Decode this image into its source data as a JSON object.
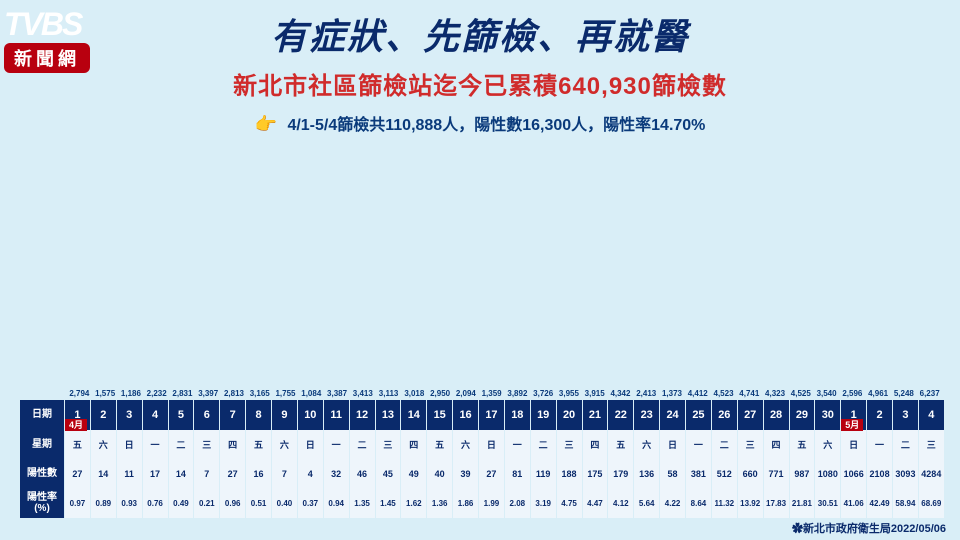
{
  "logo": {
    "line1": "TVBS",
    "line2": "新聞網"
  },
  "title": "有症狀、先篩檢、再就醫",
  "subtitle": "新北市社區篩檢站迄今已累積640,930篩檢數",
  "stats_line": "4/1-5/4篩檢共110,888人，陽性數16,300人，陽性率14.70%",
  "footer": "新北市政府衛生局2022/05/06",
  "row_headers": {
    "date": "日期",
    "weekday": "星期",
    "positive": "陽性數",
    "rate": "陽性率\n(%)"
  },
  "month_labels": {
    "april": "4月",
    "may": "5月"
  },
  "chart": {
    "bar_color": "#4a8fc9",
    "max_value": 6237,
    "header_bg": "#0a2a6b",
    "cell_bg": "#eef5fb",
    "data": [
      {
        "date": "1",
        "month": "4月",
        "wd": "五",
        "tests": 2794,
        "pos": 27,
        "rate": "0.97"
      },
      {
        "date": "2",
        "wd": "六",
        "tests": 1575,
        "pos": 14,
        "rate": "0.89"
      },
      {
        "date": "3",
        "wd": "日",
        "tests": 1186,
        "pos": 11,
        "rate": "0.93"
      },
      {
        "date": "4",
        "wd": "一",
        "tests": 2232,
        "pos": 17,
        "rate": "0.76"
      },
      {
        "date": "5",
        "wd": "二",
        "tests": 2831,
        "pos": 14,
        "rate": "0.49"
      },
      {
        "date": "6",
        "wd": "三",
        "tests": 3397,
        "pos": 7,
        "rate": "0.21"
      },
      {
        "date": "7",
        "wd": "四",
        "tests": 2813,
        "pos": 27,
        "rate": "0.96"
      },
      {
        "date": "8",
        "wd": "五",
        "tests": 3165,
        "pos": 16,
        "rate": "0.51"
      },
      {
        "date": "9",
        "wd": "六",
        "tests": 1755,
        "pos": 7,
        "rate": "0.40"
      },
      {
        "date": "10",
        "wd": "日",
        "tests": 1084,
        "pos": 4,
        "rate": "0.37"
      },
      {
        "date": "11",
        "wd": "一",
        "tests": 3387,
        "pos": 32,
        "rate": "0.94"
      },
      {
        "date": "12",
        "wd": "二",
        "tests": 3413,
        "pos": 46,
        "rate": "1.35"
      },
      {
        "date": "13",
        "wd": "三",
        "tests": 3113,
        "pos": 45,
        "rate": "1.45"
      },
      {
        "date": "14",
        "wd": "四",
        "tests": 3018,
        "pos": 49,
        "rate": "1.62"
      },
      {
        "date": "15",
        "wd": "五",
        "tests": 2950,
        "pos": 40,
        "rate": "1.36"
      },
      {
        "date": "16",
        "wd": "六",
        "tests": 2094,
        "pos": 39,
        "rate": "1.86"
      },
      {
        "date": "17",
        "wd": "日",
        "tests": 1359,
        "pos": 27,
        "rate": "1.99"
      },
      {
        "date": "18",
        "wd": "一",
        "tests": 3892,
        "pos": 81,
        "rate": "2.08"
      },
      {
        "date": "19",
        "wd": "二",
        "tests": 3726,
        "pos": 119,
        "rate": "3.19"
      },
      {
        "date": "20",
        "wd": "三",
        "tests": 3955,
        "pos": 188,
        "rate": "4.75"
      },
      {
        "date": "21",
        "wd": "四",
        "tests": 3915,
        "pos": 175,
        "rate": "4.47"
      },
      {
        "date": "22",
        "wd": "五",
        "tests": 4342,
        "pos": 179,
        "rate": "4.12"
      },
      {
        "date": "23",
        "wd": "六",
        "tests": 2413,
        "pos": 136,
        "rate": "5.64"
      },
      {
        "date": "24",
        "wd": "日",
        "tests": 1373,
        "pos": 58,
        "rate": "4.22"
      },
      {
        "date": "25",
        "wd": "一",
        "tests": 4412,
        "pos": 381,
        "rate": "8.64"
      },
      {
        "date": "26",
        "wd": "二",
        "tests": 4523,
        "pos": 512,
        "rate": "11.32"
      },
      {
        "date": "27",
        "wd": "三",
        "tests": 4741,
        "pos": 660,
        "rate": "13.92"
      },
      {
        "date": "28",
        "wd": "四",
        "tests": 4323,
        "pos": 771,
        "rate": "17.83"
      },
      {
        "date": "29",
        "wd": "五",
        "tests": 4525,
        "pos": 987,
        "rate": "21.81"
      },
      {
        "date": "30",
        "wd": "六",
        "tests": 3540,
        "pos": 1080,
        "rate": "30.51"
      },
      {
        "date": "1",
        "month": "5月",
        "wd": "日",
        "tests": 2596,
        "pos": 1066,
        "rate": "41.06"
      },
      {
        "date": "2",
        "wd": "一",
        "tests": 4961,
        "pos": 2108,
        "rate": "42.49"
      },
      {
        "date": "3",
        "wd": "二",
        "tests": 5248,
        "pos": 3093,
        "rate": "58.94"
      },
      {
        "date": "4",
        "wd": "三",
        "tests": 6237,
        "pos": 4284,
        "rate": "68.69"
      }
    ]
  }
}
